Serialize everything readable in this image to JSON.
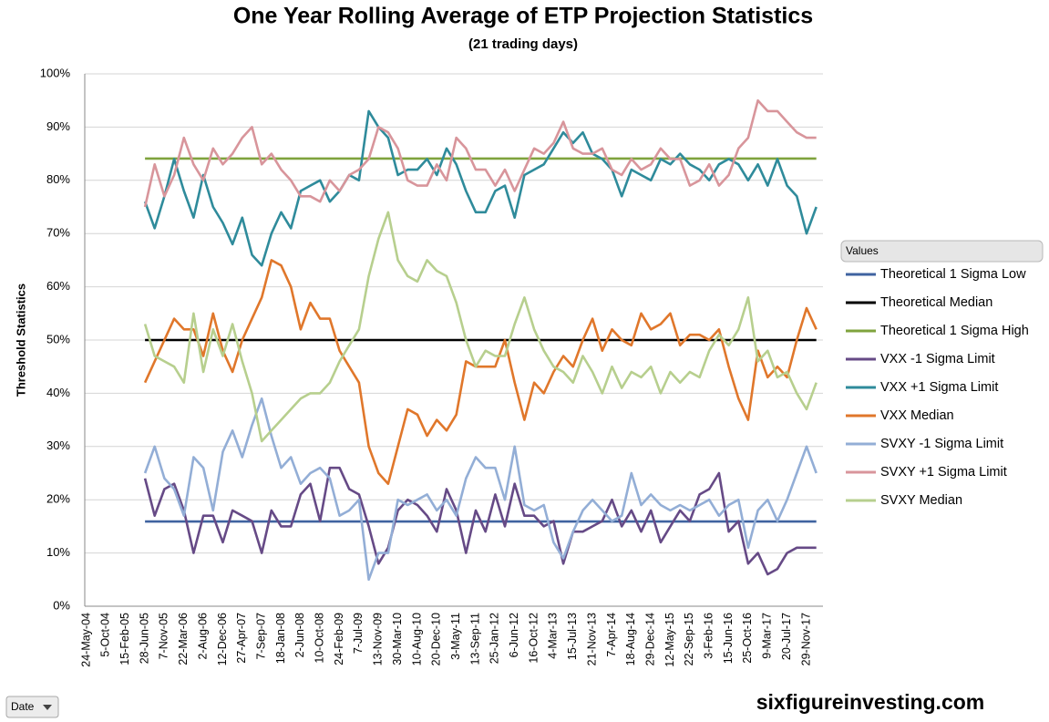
{
  "chart_data": {
    "type": "line",
    "title": "One Year Rolling Average of ETP Projection Statistics",
    "subtitle": "(21 trading days)",
    "y_label": "Threshold Statistics",
    "legend_title": "Values",
    "filter_label": "Date",
    "watermark": "sixfigureinvesting.com",
    "grid": true,
    "legend": "right",
    "ylim": [
      0,
      100
    ],
    "yticks": [
      {
        "value": 0,
        "label": "0%"
      },
      {
        "value": 10,
        "label": "10%"
      },
      {
        "value": 20,
        "label": "20%"
      },
      {
        "value": 30,
        "label": "30%"
      },
      {
        "value": 40,
        "label": "40%"
      },
      {
        "value": 50,
        "label": "50%"
      },
      {
        "value": 60,
        "label": "60%"
      },
      {
        "value": 70,
        "label": "70%"
      },
      {
        "value": 80,
        "label": "80%"
      },
      {
        "value": 90,
        "label": "90%"
      },
      {
        "value": 100,
        "label": "100%"
      }
    ],
    "categories": [
      "24-May-04",
      null,
      "5-Oct-04",
      null,
      "15-Feb-05",
      null,
      "28-Jun-05",
      null,
      "7-Nov-05",
      null,
      "22-Mar-06",
      null,
      "2-Aug-06",
      null,
      "12-Dec-06",
      null,
      "27-Apr-07",
      null,
      "7-Sep-07",
      null,
      "18-Jan-08",
      null,
      "2-Jun-08",
      null,
      "10-Oct-08",
      null,
      "24-Feb-09",
      null,
      "7-Jul-09",
      null,
      "13-Nov-09",
      null,
      "30-Mar-10",
      null,
      "10-Aug-10",
      null,
      "20-Dec-10",
      null,
      "3-May-11",
      null,
      "13-Sep-11",
      null,
      "25-Jan-12",
      null,
      "6-Jun-12",
      null,
      "16-Oct-12",
      null,
      "4-Mar-13",
      null,
      "15-Jul-13",
      null,
      "21-Nov-13",
      null,
      "7-Apr-14",
      null,
      "18-Aug-14",
      null,
      "29-Dec-14",
      null,
      "12-May-15",
      null,
      "22-Sep-15",
      null,
      "3-Feb-16",
      null,
      "15-Jun-16",
      null,
      "25-Oct-16",
      null,
      "9-Mar-17",
      null,
      "20-Jul-17",
      null,
      "29-Nov-17",
      null
    ],
    "series": [
      {
        "name": "Theoretical 1 Sigma Low",
        "color": "#3f63a0",
        "values": [
          null,
          null,
          null,
          null,
          null,
          null,
          15.9,
          15.9,
          15.9,
          15.9,
          15.9,
          15.9,
          15.9,
          15.9,
          15.9,
          15.9,
          15.9,
          15.9,
          15.9,
          15.9,
          15.9,
          15.9,
          15.9,
          15.9,
          15.9,
          15.9,
          15.9,
          15.9,
          15.9,
          15.9,
          15.9,
          15.9,
          15.9,
          15.9,
          15.9,
          15.9,
          15.9,
          15.9,
          15.9,
          15.9,
          15.9,
          15.9,
          15.9,
          15.9,
          15.9,
          15.9,
          15.9,
          15.9,
          15.9,
          15.9,
          15.9,
          15.9,
          15.9,
          15.9,
          15.9,
          15.9,
          15.9,
          15.9,
          15.9,
          15.9,
          15.9,
          15.9,
          15.9,
          15.9,
          15.9,
          15.9,
          15.9,
          15.9,
          15.9,
          15.9,
          15.9,
          15.9,
          15.9,
          15.9,
          15.9,
          15.9
        ]
      },
      {
        "name": "Theoretical Median",
        "color": "#000000",
        "values": [
          null,
          null,
          null,
          null,
          null,
          null,
          50,
          50,
          50,
          50,
          50,
          50,
          50,
          50,
          50,
          50,
          50,
          50,
          50,
          50,
          50,
          50,
          50,
          50,
          50,
          50,
          50,
          50,
          50,
          50,
          50,
          50,
          50,
          50,
          50,
          50,
          50,
          50,
          50,
          50,
          50,
          50,
          50,
          50,
          50,
          50,
          50,
          50,
          50,
          50,
          50,
          50,
          50,
          50,
          50,
          50,
          50,
          50,
          50,
          50,
          50,
          50,
          50,
          50,
          50,
          50,
          50,
          50,
          50,
          50,
          50,
          50,
          50,
          50,
          50,
          50
        ]
      },
      {
        "name": "Theoretical 1 Sigma High",
        "color": "#7fa33d",
        "values": [
          null,
          null,
          null,
          null,
          null,
          null,
          84.1,
          84.1,
          84.1,
          84.1,
          84.1,
          84.1,
          84.1,
          84.1,
          84.1,
          84.1,
          84.1,
          84.1,
          84.1,
          84.1,
          84.1,
          84.1,
          84.1,
          84.1,
          84.1,
          84.1,
          84.1,
          84.1,
          84.1,
          84.1,
          84.1,
          84.1,
          84.1,
          84.1,
          84.1,
          84.1,
          84.1,
          84.1,
          84.1,
          84.1,
          84.1,
          84.1,
          84.1,
          84.1,
          84.1,
          84.1,
          84.1,
          84.1,
          84.1,
          84.1,
          84.1,
          84.1,
          84.1,
          84.1,
          84.1,
          84.1,
          84.1,
          84.1,
          84.1,
          84.1,
          84.1,
          84.1,
          84.1,
          84.1,
          84.1,
          84.1,
          84.1,
          84.1,
          84.1,
          84.1,
          84.1,
          84.1,
          84.1,
          84.1,
          84.1,
          84.1
        ]
      },
      {
        "name": "VXX -1 Sigma Limit",
        "color": "#664a86",
        "values": [
          null,
          null,
          null,
          null,
          null,
          null,
          24,
          17,
          22,
          23,
          18,
          10,
          17,
          17,
          12,
          18,
          17,
          16,
          10,
          18,
          15,
          15,
          21,
          23,
          16,
          26,
          26,
          22,
          21,
          15,
          8,
          11,
          18,
          20,
          19,
          17,
          14,
          22,
          18,
          10,
          18,
          14,
          21,
          15,
          23,
          17,
          17,
          15,
          16,
          8,
          14,
          14,
          15,
          16,
          20,
          15,
          18,
          14,
          18,
          12,
          15,
          18,
          16,
          21,
          22,
          25,
          14,
          16,
          8,
          10,
          6,
          7,
          10,
          11,
          11,
          11
        ]
      },
      {
        "name": "VXX +1 Sigma Limit",
        "color": "#2f8b9b",
        "values": [
          null,
          null,
          null,
          null,
          null,
          null,
          76,
          71,
          77,
          84,
          78,
          73,
          81,
          75,
          72,
          68,
          73,
          66,
          64,
          70,
          74,
          71,
          78,
          79,
          80,
          76,
          78,
          81,
          80,
          93,
          90,
          88,
          81,
          82,
          82,
          84,
          81,
          86,
          83,
          78,
          74,
          74,
          78,
          79,
          73,
          81,
          82,
          83,
          86,
          89,
          87,
          89,
          85,
          84,
          82,
          77,
          82,
          81,
          80,
          84,
          83,
          85,
          83,
          82,
          80,
          83,
          84,
          83,
          80,
          83,
          79,
          84,
          79,
          77,
          70,
          75
        ]
      },
      {
        "name": "VXX Median",
        "color": "#e0772b",
        "values": [
          null,
          null,
          null,
          null,
          null,
          null,
          42,
          46,
          50,
          54,
          52,
          52,
          47,
          55,
          48,
          44,
          50,
          54,
          58,
          65,
          64,
          60,
          52,
          57,
          54,
          54,
          48,
          45,
          42,
          30,
          25,
          23,
          30,
          37,
          36,
          32,
          35,
          33,
          36,
          46,
          45,
          45,
          45,
          50,
          42,
          35,
          42,
          40,
          44,
          47,
          45,
          50,
          54,
          48,
          52,
          50,
          49,
          55,
          52,
          53,
          55,
          49,
          51,
          51,
          50,
          52,
          45,
          39,
          35,
          48,
          43,
          45,
          43,
          50,
          56,
          52
        ]
      },
      {
        "name": "SVXY -1 Sigma Limit",
        "color": "#93aed6",
        "values": [
          null,
          null,
          null,
          null,
          null,
          null,
          25,
          30,
          24,
          22,
          17,
          28,
          26,
          18,
          29,
          33,
          28,
          34,
          39,
          32,
          26,
          28,
          23,
          25,
          26,
          24,
          17,
          18,
          20,
          5,
          10,
          10,
          20,
          19,
          20,
          21,
          18,
          20,
          17,
          24,
          28,
          26,
          26,
          20,
          30,
          19,
          18,
          19,
          12,
          9,
          14,
          18,
          20,
          18,
          16,
          17,
          25,
          19,
          21,
          19,
          18,
          19,
          18,
          19,
          20,
          17,
          19,
          20,
          11,
          18,
          20,
          16,
          20,
          25,
          30,
          25
        ]
      },
      {
        "name": "SVXY +1 Sigma Limit",
        "color": "#d8959b",
        "values": [
          null,
          null,
          null,
          null,
          null,
          null,
          75,
          83,
          77,
          81,
          88,
          83,
          80,
          86,
          83,
          85,
          88,
          90,
          83,
          85,
          82,
          80,
          77,
          77,
          76,
          80,
          78,
          81,
          82,
          84,
          90,
          89,
          86,
          80,
          79,
          79,
          83,
          80,
          88,
          86,
          82,
          82,
          79,
          82,
          78,
          82,
          86,
          85,
          87,
          91,
          86,
          85,
          85,
          86,
          82,
          81,
          84,
          82,
          83,
          86,
          84,
          84,
          79,
          80,
          83,
          79,
          81,
          86,
          88,
          95,
          93,
          93,
          91,
          89,
          88,
          88
        ]
      },
      {
        "name": "SVXY Median",
        "color": "#b7cf8e",
        "values": [
          null,
          null,
          null,
          null,
          null,
          null,
          53,
          47,
          46,
          45,
          42,
          55,
          44,
          52,
          47,
          53,
          46,
          40,
          31,
          33,
          35,
          37,
          39,
          40,
          40,
          42,
          46,
          49,
          52,
          62,
          69,
          74,
          65,
          62,
          61,
          65,
          63,
          62,
          57,
          50,
          45,
          48,
          47,
          47,
          53,
          58,
          52,
          48,
          45,
          44,
          42,
          47,
          44,
          40,
          45,
          41,
          44,
          43,
          45,
          40,
          44,
          42,
          44,
          43,
          48,
          51,
          49,
          52,
          58,
          46,
          48,
          43,
          44,
          40,
          37,
          42
        ]
      }
    ]
  }
}
